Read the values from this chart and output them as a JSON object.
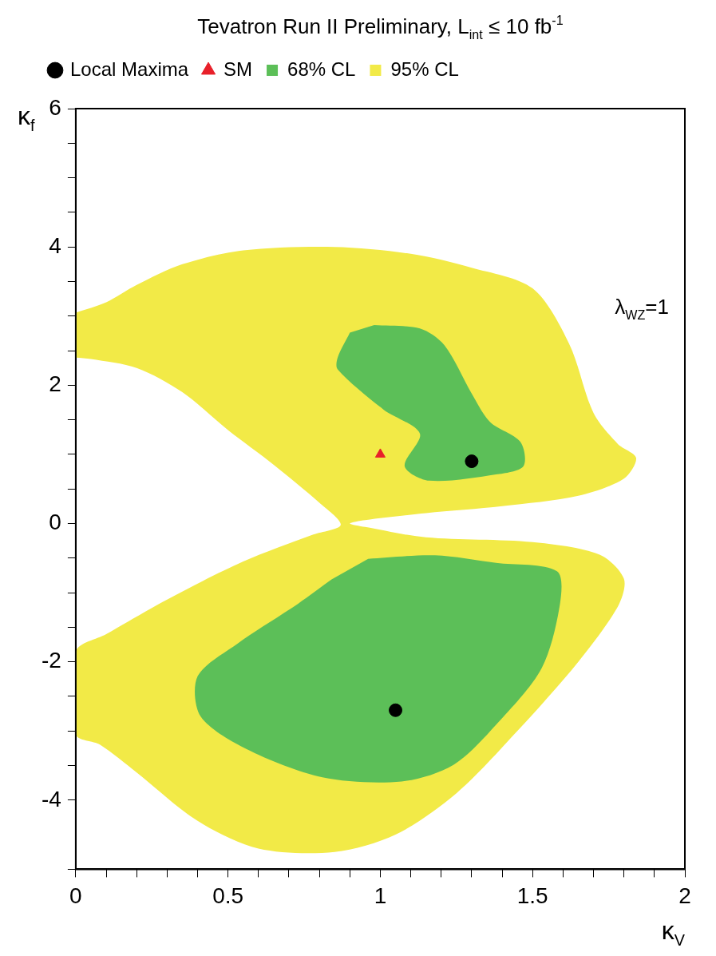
{
  "chart_data": {
    "type": "area",
    "title": "Tevatron Run II Preliminary, L$_{int}$ ≤ 10 fb$^{-1}$",
    "xlabel": "κ$_{V}$",
    "ylabel": "κ$_{f}$",
    "annotations": [
      "λ$_{WZ}$=1"
    ],
    "xlim": [
      0,
      2
    ],
    "ylim": [
      -5,
      6
    ],
    "xticks": [
      0,
      {
        "value": 0.1,
        "label": null
      },
      {
        "value": 0.2,
        "label": null
      },
      {
        "value": 0.3,
        "label": null
      },
      {
        "value": 0.4,
        "label": null
      },
      0.5,
      {
        "value": 0.6,
        "label": null
      },
      {
        "value": 0.7,
        "label": null
      },
      {
        "value": 0.8,
        "label": null
      },
      {
        "value": 0.9,
        "label": null
      },
      1,
      {
        "value": 1.1,
        "label": null
      },
      {
        "value": 1.2,
        "label": null
      },
      {
        "value": 1.3,
        "label": null
      },
      {
        "value": 1.4,
        "label": null
      },
      1.5,
      {
        "value": 1.6,
        "label": null
      },
      {
        "value": 1.7,
        "label": null
      },
      {
        "value": 1.8,
        "label": null
      },
      {
        "value": 1.9,
        "label": null
      },
      2
    ],
    "yticks": [
      {
        "value": -5,
        "label": null
      },
      -4,
      {
        "value": -3.5,
        "label": null
      },
      {
        "value": -3,
        "label": null
      },
      {
        "value": -2.5,
        "label": null
      },
      -2,
      {
        "value": -1.5,
        "label": null
      },
      {
        "value": -1,
        "label": null
      },
      {
        "value": -0.5,
        "label": null
      },
      0,
      {
        "value": 0.5,
        "label": null
      },
      {
        "value": 1,
        "label": null
      },
      {
        "value": 1.5,
        "label": null
      },
      2,
      {
        "value": 2.5,
        "label": null
      },
      {
        "value": 3,
        "label": null
      },
      {
        "value": 3.5,
        "label": null
      },
      4,
      {
        "value": 4.5,
        "label": null
      },
      {
        "value": 5,
        "label": null
      },
      {
        "value": 5.5,
        "label": null
      },
      6
    ],
    "grid": false,
    "legend": "top left",
    "series": [
      {
        "name": "95% CL",
        "color": "#f2ea47",
        "x": [
          0,
          0.1,
          0.2,
          0.35,
          0.55,
          0.85,
          1.1,
          1.3,
          1.5,
          1.62,
          1.7,
          1.78,
          1.84,
          1.8,
          1.65,
          1.4,
          1.15,
          0.95,
          0.9,
          0.95,
          1.15,
          1.5,
          1.72,
          1.8,
          1.78,
          1.65,
          1.45,
          1.25,
          1.05,
          0.85,
          0.6,
          0.4,
          0.2,
          0.08,
          0,
          0,
          0.1,
          0.3,
          0.55,
          0.78,
          0.87,
          0.8,
          0.65,
          0.5,
          0.35,
          0.2,
          0.05,
          0
        ],
        "values": [
          3.05,
          3.2,
          3.45,
          3.75,
          3.95,
          4.0,
          3.9,
          3.7,
          3.4,
          2.6,
          1.6,
          1.15,
          0.95,
          0.65,
          0.4,
          0.25,
          0.15,
          0.05,
          0,
          -0.05,
          -0.2,
          -0.27,
          -0.45,
          -0.8,
          -1.2,
          -2.0,
          -3.0,
          -3.9,
          -4.5,
          -4.75,
          -4.7,
          -4.3,
          -3.6,
          -3.2,
          -3.05,
          -1.85,
          -1.6,
          -1.1,
          -0.55,
          -0.16,
          -0.02,
          0.3,
          0.85,
          1.35,
          1.9,
          2.25,
          2.38,
          2.4
        ]
      },
      {
        "name": "68% CL",
        "color": "#5cbf58",
        "x": [
          0.98,
          1.13,
          1.21,
          1.3,
          1.36,
          1.46,
          1.47,
          1.38,
          1.16,
          1.08,
          1.13,
          1.01,
          0.86,
          0.86,
          0.9
        ],
        "values": [
          2.87,
          2.82,
          2.58,
          1.88,
          1.47,
          1.18,
          0.83,
          0.71,
          0.62,
          0.83,
          1.3,
          1.65,
          2.23,
          2.4,
          2.76
        ]
      },
      {
        "color": "#5cbf58",
        "x": [
          0.96,
          1.18,
          1.38,
          1.58,
          1.59,
          1.53,
          1.38,
          1.24,
          1.07,
          0.81,
          0.56,
          0.41,
          0.4,
          0.53,
          0.73,
          0.84
        ],
        "values": [
          -0.51,
          -0.46,
          -0.57,
          -0.69,
          -1.16,
          -2.09,
          -2.91,
          -3.49,
          -3.73,
          -3.67,
          -3.26,
          -2.79,
          -2.21,
          -1.74,
          -1.16,
          -0.81
        ]
      },
      {
        "name": "Local Maxima",
        "type": "scatter",
        "marker": "circle",
        "color": "#000000",
        "x": [
          1.3,
          1.05
        ],
        "values": [
          0.9,
          -2.7
        ]
      },
      {
        "name": "SM",
        "type": "scatter",
        "marker": "triangle",
        "color": "#e8202a",
        "x": [
          1
        ],
        "values": [
          1
        ]
      }
    ]
  }
}
